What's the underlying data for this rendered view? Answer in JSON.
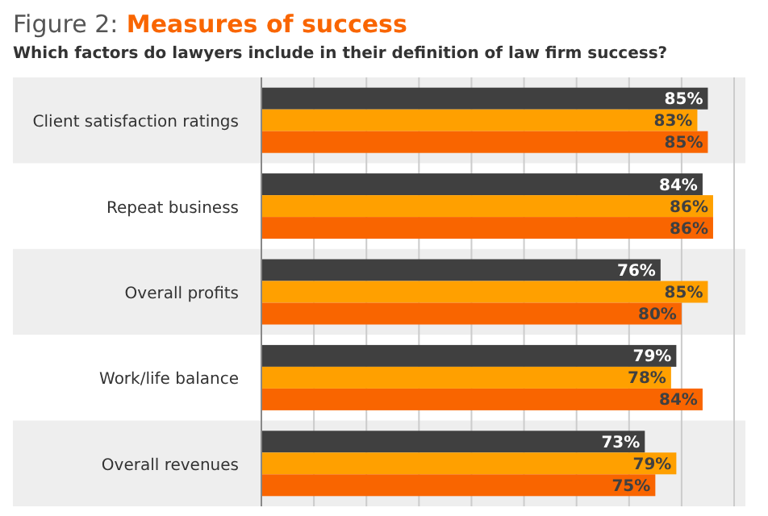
{
  "chart_data": {
    "type": "bar",
    "orientation": "horizontal",
    "title": "Figure 2: Measures of success",
    "subtitle": "Which factors do lawyers include in their definition of law firm success?",
    "categories": [
      "Client satisfaction ratings",
      "Repeat business",
      "Overall profits",
      "Work/life balance",
      "Overall revenues"
    ],
    "series": [
      {
        "color": "#404040",
        "values": [
          85,
          84,
          76,
          79,
          73
        ],
        "value_labels": [
          "85%",
          "84%",
          "76%",
          "79%",
          "73%"
        ]
      },
      {
        "color": "#ffa000",
        "values": [
          83,
          86,
          85,
          78,
          79
        ],
        "value_labels": [
          "83%",
          "86%",
          "85%",
          "78%",
          "79%"
        ]
      },
      {
        "color": "#f96500",
        "values": [
          85,
          86,
          80,
          84,
          75
        ],
        "value_labels": [
          "85%",
          "86%",
          "80%",
          "84%",
          "75%"
        ]
      }
    ],
    "grid": "x",
    "tick_labels": "y"
  }
}
